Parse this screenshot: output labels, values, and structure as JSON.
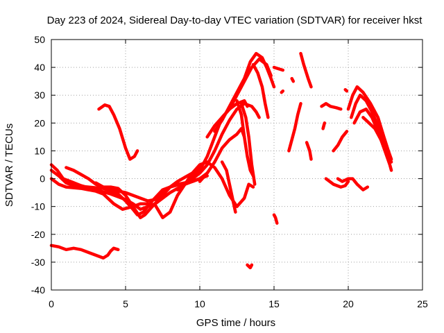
{
  "chart_data": {
    "type": "scatter",
    "title": "Day 223 of 2024, Sidereal Day-to-day VTEC variation (SDTVAR) for receiver hkst",
    "xlabel": "GPS time / hours",
    "ylabel": "SDTVAR / TECUs",
    "xlim": [
      0,
      25
    ],
    "ylim": [
      -40,
      50
    ],
    "xticks": [
      0,
      5,
      10,
      15,
      20,
      25
    ],
    "yticks": [
      -40,
      -30,
      -20,
      -10,
      0,
      10,
      20,
      30,
      40,
      50
    ],
    "grid": true,
    "marker": "+",
    "color": "#ff0000",
    "series": [
      {
        "name": "s1",
        "points": [
          [
            0,
            -24
          ],
          [
            0.5,
            -24.5
          ],
          [
            1,
            -25.5
          ],
          [
            1.5,
            -25
          ],
          [
            2,
            -25.5
          ],
          [
            2.5,
            -26.5
          ],
          [
            3,
            -27.5
          ],
          [
            3.5,
            -28.5
          ],
          [
            3.8,
            -27.5
          ],
          [
            4,
            -26
          ],
          [
            4.2,
            -25
          ],
          [
            4.5,
            -25.5
          ]
        ]
      },
      {
        "name": "s2",
        "points": [
          [
            3.2,
            25
          ],
          [
            3.6,
            26.5
          ],
          [
            3.9,
            26
          ],
          [
            4.2,
            23
          ],
          [
            4.6,
            18
          ],
          [
            5,
            11
          ],
          [
            5.3,
            7
          ],
          [
            5.6,
            8
          ],
          [
            5.8,
            10
          ]
        ]
      },
      {
        "name": "s3",
        "points": [
          [
            0,
            5
          ],
          [
            0.4,
            3
          ],
          [
            0.8,
            0
          ],
          [
            1.3,
            -1
          ],
          [
            2,
            -2.5
          ],
          [
            3,
            -4
          ],
          [
            4,
            -5.5
          ],
          [
            5,
            -7.5
          ],
          [
            5.5,
            -9
          ],
          [
            6,
            -11
          ],
          [
            6.5,
            -10
          ],
          [
            7,
            -9
          ],
          [
            8,
            -5
          ],
          [
            9,
            -2
          ],
          [
            10,
            0
          ],
          [
            10.5,
            2
          ]
        ]
      },
      {
        "name": "s4",
        "points": [
          [
            0,
            3
          ],
          [
            0.5,
            1
          ],
          [
            1,
            -1.5
          ],
          [
            1.5,
            -2.5
          ],
          [
            2.5,
            -3
          ],
          [
            3.5,
            -3.5
          ],
          [
            4.5,
            -5.5
          ],
          [
            5,
            -8
          ],
          [
            5.5,
            -11
          ],
          [
            5.8,
            -13
          ],
          [
            6.2,
            -12
          ],
          [
            6.8,
            -8
          ],
          [
            7.5,
            -4
          ],
          [
            8.5,
            -2
          ],
          [
            9.5,
            -1
          ],
          [
            10.5,
            1
          ]
        ]
      },
      {
        "name": "s5",
        "points": [
          [
            1,
            4
          ],
          [
            1.5,
            3
          ],
          [
            2,
            1.5
          ],
          [
            2.5,
            0
          ],
          [
            3,
            -2
          ],
          [
            3.5,
            -3
          ],
          [
            4,
            -3
          ],
          [
            4.5,
            -3.5
          ],
          [
            5,
            -6
          ],
          [
            5.5,
            -10
          ],
          [
            6,
            -14
          ],
          [
            6.3,
            -13
          ],
          [
            6.8,
            -10
          ],
          [
            7.5,
            -6
          ],
          [
            8,
            -3
          ],
          [
            9,
            -1.5
          ],
          [
            10,
            0
          ]
        ]
      },
      {
        "name": "s6",
        "points": [
          [
            0,
            0
          ],
          [
            0.5,
            -2
          ],
          [
            1,
            -3
          ],
          [
            2,
            -3.5
          ],
          [
            3,
            -4.5
          ],
          [
            3.5,
            -5.5
          ],
          [
            4.2,
            -9
          ],
          [
            4.8,
            -11
          ],
          [
            5.5,
            -10
          ],
          [
            6,
            -9
          ],
          [
            6.5,
            -9
          ],
          [
            7,
            -9.5
          ],
          [
            7.5,
            -14
          ],
          [
            8,
            -12
          ],
          [
            8.5,
            -6
          ],
          [
            9,
            -2
          ],
          [
            9.5,
            1
          ],
          [
            10,
            4
          ]
        ]
      },
      {
        "name": "s7",
        "points": [
          [
            3,
            -1.5
          ],
          [
            3.5,
            -3
          ],
          [
            4,
            -4
          ],
          [
            4.5,
            -4.5
          ],
          [
            5,
            -5
          ],
          [
            5.5,
            -6
          ],
          [
            6,
            -7
          ],
          [
            6.5,
            -8
          ],
          [
            7,
            -7.5
          ],
          [
            7.5,
            -5
          ],
          [
            8,
            -3
          ],
          [
            8.5,
            -1
          ],
          [
            9,
            0.5
          ],
          [
            9.5,
            2
          ]
        ]
      },
      {
        "name": "s8",
        "points": [
          [
            8.5,
            -4
          ],
          [
            9,
            -2
          ],
          [
            9.5,
            2
          ],
          [
            10,
            5
          ],
          [
            10.5,
            6
          ],
          [
            11,
            4
          ],
          [
            11.5,
            0
          ],
          [
            12,
            -6
          ],
          [
            12.5,
            -10
          ],
          [
            13,
            -7
          ],
          [
            13.3,
            -2
          ],
          [
            13.6,
            -3
          ]
        ]
      },
      {
        "name": "s9",
        "points": [
          [
            9.5,
            0
          ],
          [
            10,
            2
          ],
          [
            10.5,
            5
          ],
          [
            11,
            10
          ],
          [
            11.5,
            16
          ],
          [
            12,
            21
          ],
          [
            12.5,
            25
          ],
          [
            13,
            27
          ],
          [
            13.5,
            26
          ],
          [
            13.8,
            24
          ],
          [
            14,
            22
          ]
        ]
      },
      {
        "name": "s10",
        "points": [
          [
            9,
            -2
          ],
          [
            9.5,
            0
          ],
          [
            10,
            3
          ],
          [
            10.5,
            8
          ],
          [
            11,
            15
          ],
          [
            11.5,
            22
          ],
          [
            12,
            25
          ],
          [
            12.5,
            27
          ],
          [
            13,
            28
          ],
          [
            13.2,
            26
          ]
        ]
      },
      {
        "name": "s11",
        "points": [
          [
            10,
            -1
          ],
          [
            10.5,
            2
          ],
          [
            11,
            6
          ],
          [
            11.5,
            11
          ],
          [
            12,
            14
          ],
          [
            12.5,
            16
          ],
          [
            12.8,
            18
          ],
          [
            13,
            15
          ]
        ]
      },
      {
        "name": "s12",
        "points": [
          [
            10.5,
            15
          ],
          [
            11,
            19
          ],
          [
            11.5,
            22
          ],
          [
            12,
            25
          ],
          [
            12.5,
            30
          ],
          [
            13,
            35
          ],
          [
            13.5,
            40
          ],
          [
            14,
            43
          ],
          [
            14.5,
            41
          ],
          [
            14.8,
            37
          ]
        ]
      },
      {
        "name": "s13",
        "points": [
          [
            11,
            17
          ],
          [
            11.5,
            21
          ],
          [
            12,
            26
          ],
          [
            12.5,
            31
          ],
          [
            13,
            36
          ],
          [
            13.4,
            42
          ],
          [
            13.8,
            45
          ],
          [
            14.2,
            43.5
          ],
          [
            14.5,
            40
          ],
          [
            14.8,
            36
          ],
          [
            15,
            33
          ]
        ]
      },
      {
        "name": "s14",
        "points": [
          [
            11.5,
            6
          ],
          [
            11.8,
            3
          ],
          [
            12,
            -2
          ],
          [
            12.2,
            -7
          ],
          [
            12.4,
            -12
          ]
        ]
      },
      {
        "name": "s15",
        "points": [
          [
            12.8,
            27
          ],
          [
            13.1,
            22
          ],
          [
            13.3,
            15
          ],
          [
            13.5,
            5
          ],
          [
            13.7,
            -2
          ]
        ]
      },
      {
        "name": "s16",
        "points": [
          [
            12.5,
            28
          ],
          [
            12.8,
            23
          ],
          [
            13,
            15
          ],
          [
            13.2,
            8
          ],
          [
            13.4,
            3
          ],
          [
            13.6,
            1
          ]
        ]
      },
      {
        "name": "s17",
        "points": [
          [
            13.6,
            41
          ],
          [
            13.9,
            38
          ],
          [
            14.2,
            33
          ],
          [
            14.4,
            27
          ],
          [
            14.6,
            22
          ]
        ]
      },
      {
        "name": "s18",
        "points": [
          [
            13.2,
            -31
          ],
          [
            13.3,
            -31.5
          ],
          [
            13.4,
            -32
          ],
          [
            13.5,
            -31
          ]
        ]
      },
      {
        "name": "s19",
        "points": [
          [
            15,
            -13
          ],
          [
            15.1,
            -14
          ],
          [
            15.2,
            -16
          ]
        ]
      },
      {
        "name": "s20",
        "points": [
          [
            15,
            40
          ],
          [
            15.3,
            39.5
          ],
          [
            15.6,
            39
          ]
        ]
      },
      {
        "name": "s21",
        "points": [
          [
            15.5,
            31
          ],
          [
            15.6,
            31.5
          ]
        ]
      },
      {
        "name": "s22",
        "points": [
          [
            16,
            10
          ],
          [
            16.2,
            14
          ],
          [
            16.4,
            18
          ],
          [
            16.6,
            23
          ],
          [
            16.8,
            27
          ]
        ]
      },
      {
        "name": "s23",
        "points": [
          [
            16.2,
            36
          ],
          [
            16.3,
            35
          ]
        ]
      },
      {
        "name": "s24",
        "points": [
          [
            16.8,
            45
          ],
          [
            17,
            41
          ],
          [
            17.3,
            36
          ],
          [
            17.5,
            33
          ]
        ]
      },
      {
        "name": "s25",
        "points": [
          [
            17.2,
            13
          ],
          [
            17.4,
            10
          ],
          [
            17.5,
            7
          ]
        ]
      },
      {
        "name": "s26",
        "points": [
          [
            18.2,
            26
          ],
          [
            18.5,
            27
          ],
          [
            18.8,
            26
          ],
          [
            19.2,
            25.5
          ],
          [
            19.5,
            25
          ]
        ]
      },
      {
        "name": "s27",
        "points": [
          [
            18.3,
            18
          ],
          [
            18.4,
            20
          ]
        ]
      },
      {
        "name": "s28",
        "points": [
          [
            18.5,
            0
          ],
          [
            19,
            -2
          ],
          [
            19.5,
            -3
          ],
          [
            19.8,
            -2.5
          ],
          [
            20,
            -1
          ]
        ]
      },
      {
        "name": "s29",
        "points": [
          [
            19,
            10
          ],
          [
            19.3,
            12
          ],
          [
            19.6,
            15
          ],
          [
            19.9,
            17
          ]
        ]
      },
      {
        "name": "s30",
        "points": [
          [
            19.3,
            0
          ],
          [
            19.6,
            -1
          ],
          [
            20,
            0
          ],
          [
            20.3,
            0
          ],
          [
            20.6,
            -2
          ],
          [
            21,
            -4
          ],
          [
            21.3,
            -3
          ]
        ]
      },
      {
        "name": "s31",
        "points": [
          [
            19.8,
            32
          ],
          [
            19.9,
            31.5
          ]
        ]
      },
      {
        "name": "s32",
        "points": [
          [
            20,
            25
          ],
          [
            20.3,
            30
          ],
          [
            20.6,
            33
          ],
          [
            21,
            31
          ],
          [
            21.5,
            27
          ],
          [
            22,
            22
          ],
          [
            22.4,
            15
          ],
          [
            22.7,
            10
          ],
          [
            22.9,
            7
          ]
        ]
      },
      {
        "name": "s33",
        "points": [
          [
            20.2,
            22
          ],
          [
            20.5,
            27
          ],
          [
            20.8,
            30
          ],
          [
            21.2,
            28
          ],
          [
            21.6,
            24
          ],
          [
            22,
            19
          ],
          [
            22.4,
            13
          ],
          [
            22.8,
            8
          ]
        ]
      },
      {
        "name": "s34",
        "points": [
          [
            20.4,
            20
          ],
          [
            20.8,
            24
          ],
          [
            21.2,
            25
          ],
          [
            21.6,
            22
          ],
          [
            22,
            17
          ],
          [
            22.4,
            11
          ],
          [
            22.8,
            5
          ],
          [
            22.9,
            3
          ]
        ]
      },
      {
        "name": "s35",
        "points": [
          [
            21,
            22
          ],
          [
            21.4,
            20
          ],
          [
            21.8,
            18
          ],
          [
            22.2,
            14
          ],
          [
            22.6,
            9
          ],
          [
            22.9,
            6
          ]
        ]
      }
    ]
  }
}
